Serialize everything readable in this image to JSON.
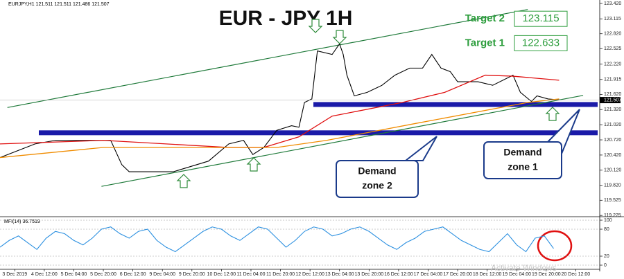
{
  "chart_data": [
    {
      "type": "line",
      "title": "EUR - JPY 1H",
      "header": "EURJPY,H1  121.511 121.511 121.486 121.507",
      "current_price": {
        "value": 121.507,
        "label": "121.507"
      },
      "xlim": [
        0,
        325
      ],
      "ylim": [
        119.2,
        123.46
      ],
      "yticks": [
        {
          "value": 123.42,
          "label": "123.420"
        },
        123.115,
        {
          "value": 122.82,
          "label": "122.820"
        },
        122.525,
        {
          "value": 122.22,
          "label": "122.220"
        },
        121.915,
        {
          "value": 121.62,
          "label": "121.620"
        },
        {
          "value": 121.32,
          "label": "121.320"
        },
        {
          "value": 121.02,
          "label": "121.020"
        },
        {
          "value": 120.72,
          "label": "120.720"
        },
        {
          "value": 120.42,
          "label": "120.420"
        },
        {
          "value": 120.12,
          "label": "120.120"
        },
        {
          "value": 119.82,
          "label": "119.820"
        },
        119.525,
        119.225
      ],
      "series": [
        {
          "color": "#000000",
          "x": [
            0,
            19,
            30,
            60,
            66,
            70,
            94,
            113,
            124,
            132,
            137,
            143,
            150,
            158,
            162,
            165,
            169,
            172,
            180,
            184,
            186,
            188,
            192,
            199,
            207,
            214,
            222,
            229,
            234,
            239,
            244,
            248,
            259,
            267,
            278,
            282,
            288,
            291,
            297,
            303
          ],
          "values": [
            120.37,
            120.64,
            120.71,
            120.71,
            120.23,
            120.09,
            120.09,
            120.3,
            120.64,
            120.71,
            120.43,
            120.57,
            120.91,
            121.0,
            120.97,
            121.46,
            121.53,
            122.48,
            122.41,
            122.62,
            122.41,
            122.0,
            121.59,
            121.66,
            121.8,
            122.0,
            122.14,
            122.14,
            122.41,
            122.14,
            122.07,
            121.87,
            121.87,
            121.8,
            122.0,
            121.66,
            121.48,
            121.59,
            121.53,
            121.51
          ]
        },
        {
          "color": "#e01010",
          "x": [
            0,
            56,
            124,
            143,
            162,
            180,
            218,
            241,
            263,
            278,
            303
          ],
          "values": [
            120.64,
            120.71,
            120.57,
            120.57,
            120.78,
            121.19,
            121.46,
            121.66,
            122.0,
            121.98,
            121.9
          ]
        },
        {
          "color": "#f08c00",
          "x": [
            0,
            56,
            150,
            177,
            226,
            286,
            303
          ],
          "values": [
            120.37,
            120.57,
            120.57,
            120.71,
            121.05,
            121.46,
            121.53
          ]
        }
      ],
      "trendlines": [
        {
          "color": "#1f7a3a",
          "x": [
            4,
            286
          ],
          "values": [
            121.36,
            123.3
          ]
        },
        {
          "color": "#1f7a3a",
          "x": [
            55,
            316
          ],
          "values": [
            119.8,
            121.6
          ]
        }
      ],
      "demand_zones": [
        121.42,
        120.86
      ],
      "zone_labels": [
        [
          "Demand",
          "zone 2"
        ],
        [
          "Demand",
          "zone 1"
        ]
      ],
      "targets": [
        {
          "label": "Target 2",
          "value": 123.115
        },
        {
          "label": "Target 1",
          "value": 122.633
        }
      ],
      "watermark": "Activate Windows"
    },
    {
      "type": "line",
      "title": "MFI(14) 36.7519",
      "xlim": [
        0,
        325
      ],
      "ylim": [
        -7.7,
        106.2
      ],
      "yticks": [
        100,
        80,
        20,
        0
      ],
      "xticks": [
        {
          "value": 8,
          "label": "3 Dec 2019"
        },
        {
          "value": 24,
          "label": "4 Dec 12:00"
        },
        {
          "value": 40,
          "label": "5 Dec 04:00"
        },
        {
          "value": 56,
          "label": "5 Dec 20:00"
        },
        {
          "value": 72,
          "label": "6 Dec 12:00"
        },
        {
          "value": 88,
          "label": "9 Dec 04:00"
        },
        {
          "value": 104,
          "label": "9 Dec 20:00"
        },
        {
          "value": 120,
          "label": "10 Dec 12:00"
        },
        {
          "value": 136,
          "label": "11 Dec 04:00"
        },
        {
          "value": 152,
          "label": "11 Dec 20:00"
        },
        {
          "value": 168,
          "label": "12 Dec 12:00"
        },
        {
          "value": 184,
          "label": "13 Dec 04:00"
        },
        {
          "value": 200,
          "label": "13 Dec 20:00"
        },
        {
          "value": 216,
          "label": "16 Dec 12:00"
        },
        {
          "value": 232,
          "label": "17 Dec 04:00"
        },
        {
          "value": 248,
          "label": "17 Dec 20:00"
        },
        {
          "value": 264,
          "label": "18 Dec 12:00"
        },
        {
          "value": 280,
          "label": "19 Dec 04:00"
        },
        {
          "value": 296,
          "label": "19 Dec 20:00"
        },
        {
          "value": 312,
          "label": "20 Dec 12:00"
        }
      ],
      "series": [
        {
          "color": "#2a8fe0",
          "x": [
            0,
            5,
            10,
            15,
            20,
            25,
            30,
            35,
            40,
            45,
            50,
            55,
            60,
            65,
            70,
            75,
            80,
            85,
            90,
            95,
            100,
            105,
            110,
            115,
            120,
            125,
            130,
            135,
            140,
            145,
            150,
            155,
            160,
            165,
            170,
            175,
            180,
            185,
            190,
            195,
            200,
            205,
            210,
            215,
            220,
            225,
            230,
            235,
            240,
            245,
            250,
            255,
            260,
            265,
            270,
            275,
            280,
            285,
            290,
            295,
            300
          ],
          "values": [
            40,
            55,
            65,
            50,
            35,
            60,
            75,
            70,
            55,
            45,
            60,
            80,
            85,
            70,
            60,
            75,
            80,
            55,
            40,
            30,
            45,
            60,
            75,
            85,
            80,
            65,
            55,
            70,
            85,
            80,
            60,
            40,
            55,
            75,
            85,
            80,
            65,
            70,
            80,
            85,
            75,
            60,
            45,
            35,
            50,
            60,
            75,
            80,
            85,
            70,
            55,
            45,
            35,
            30,
            50,
            70,
            45,
            30,
            60,
            65,
            37
          ]
        }
      ]
    }
  ]
}
